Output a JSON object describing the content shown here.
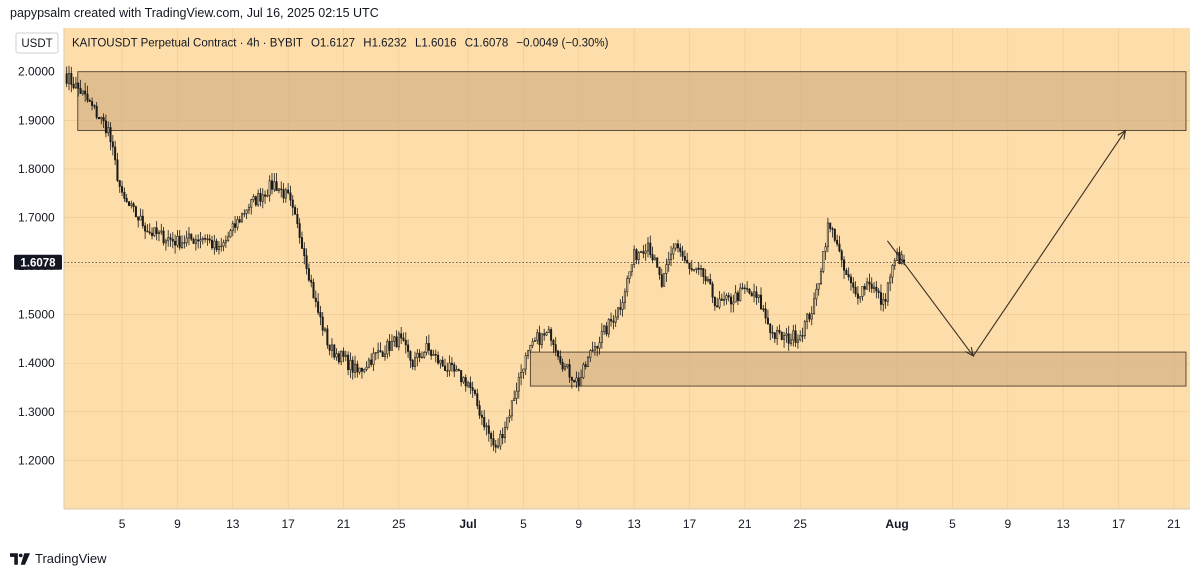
{
  "header": {
    "credit": "papypsalm created with TradingView.com, Jul 16, 2025 02:15 UTC"
  },
  "legend": {
    "currency": "USDT",
    "symbol": "KAITOUSDT Perpetual Contract · 4h · BYBIT",
    "open": "O1.6127",
    "high": "H1.6232",
    "low": "L1.6016",
    "close": "C1.6078",
    "change": "−0.0049 (−0.30%)"
  },
  "price_label": "1.6078",
  "footer": {
    "brand": "TradingView"
  },
  "colors": {
    "background": "#fddeaa",
    "candle": "#1a1a1a",
    "zone_fill": "#d4b185",
    "zone_border": "#3a2f24",
    "price_tag": "#131722"
  },
  "chart_data": {
    "type": "candlestick",
    "title": "KAITOUSDT Perpetual Contract · 4h · BYBIT",
    "xlabel": "",
    "ylabel": "",
    "ylim": [
      1.1,
      2.09
    ],
    "y_ticks": [
      "2.0000",
      "1.9000",
      "1.8000",
      "1.7000",
      "1.6000",
      "1.5000",
      "1.4000",
      "1.3000",
      "1.2000"
    ],
    "x_ticks": [
      "5",
      "9",
      "13",
      "17",
      "21",
      "25",
      "Jul",
      "5",
      "9",
      "13",
      "17",
      "21",
      "25",
      "Aug",
      "5",
      "9",
      "13",
      "17",
      "21"
    ],
    "grid": true,
    "current_price": 1.6078,
    "ohlc_last": {
      "open": 1.6127,
      "high": 1.6232,
      "low": 1.6016,
      "close": 1.6078
    },
    "close_path": [
      [
        0,
        1.99
      ],
      [
        1,
        1.96
      ],
      [
        3,
        1.88
      ],
      [
        4,
        1.74
      ],
      [
        6,
        1.67
      ],
      [
        8,
        1.65
      ],
      [
        10,
        1.66
      ],
      [
        11,
        1.63
      ],
      [
        13,
        1.72
      ],
      [
        15,
        1.77
      ],
      [
        16,
        1.74
      ],
      [
        17,
        1.65
      ],
      [
        18,
        1.52
      ],
      [
        19,
        1.43
      ],
      [
        20,
        1.41
      ],
      [
        21,
        1.38
      ],
      [
        22,
        1.41
      ],
      [
        24,
        1.45
      ],
      [
        25,
        1.4
      ],
      [
        26,
        1.43
      ],
      [
        27,
        1.4
      ],
      [
        29,
        1.36
      ],
      [
        30,
        1.29
      ],
      [
        31,
        1.22
      ],
      [
        32,
        1.3
      ],
      [
        33,
        1.4
      ],
      [
        34,
        1.45
      ],
      [
        35,
        1.46
      ],
      [
        36,
        1.39
      ],
      [
        37,
        1.36
      ],
      [
        38,
        1.43
      ],
      [
        39,
        1.47
      ],
      [
        40,
        1.52
      ],
      [
        41,
        1.62
      ],
      [
        42,
        1.65
      ],
      [
        43,
        1.56
      ],
      [
        44,
        1.65
      ],
      [
        45,
        1.59
      ],
      [
        46,
        1.58
      ],
      [
        47,
        1.52
      ],
      [
        48,
        1.53
      ],
      [
        49,
        1.55
      ],
      [
        50,
        1.53
      ],
      [
        51,
        1.46
      ],
      [
        52,
        1.45
      ],
      [
        53,
        1.46
      ],
      [
        54,
        1.52
      ],
      [
        55,
        1.68
      ],
      [
        55.6,
        1.66
      ],
      [
        56,
        1.6
      ],
      [
        57,
        1.54
      ],
      [
        58,
        1.57
      ],
      [
        59,
        1.52
      ],
      [
        59.5,
        1.58
      ],
      [
        60,
        1.62
      ],
      [
        60.5,
        1.6078
      ]
    ],
    "zones": [
      {
        "y_top": 2.0,
        "y_bottom": 1.879,
        "x_start": 0.8,
        "x_end": 120
      },
      {
        "y_top": 1.423,
        "y_bottom": 1.353,
        "x_start": 33.5,
        "x_end": 120
      }
    ],
    "projection": [
      [
        59.3,
        1.652
      ],
      [
        65.5,
        1.415
      ],
      [
        76.5,
        1.879
      ]
    ]
  }
}
